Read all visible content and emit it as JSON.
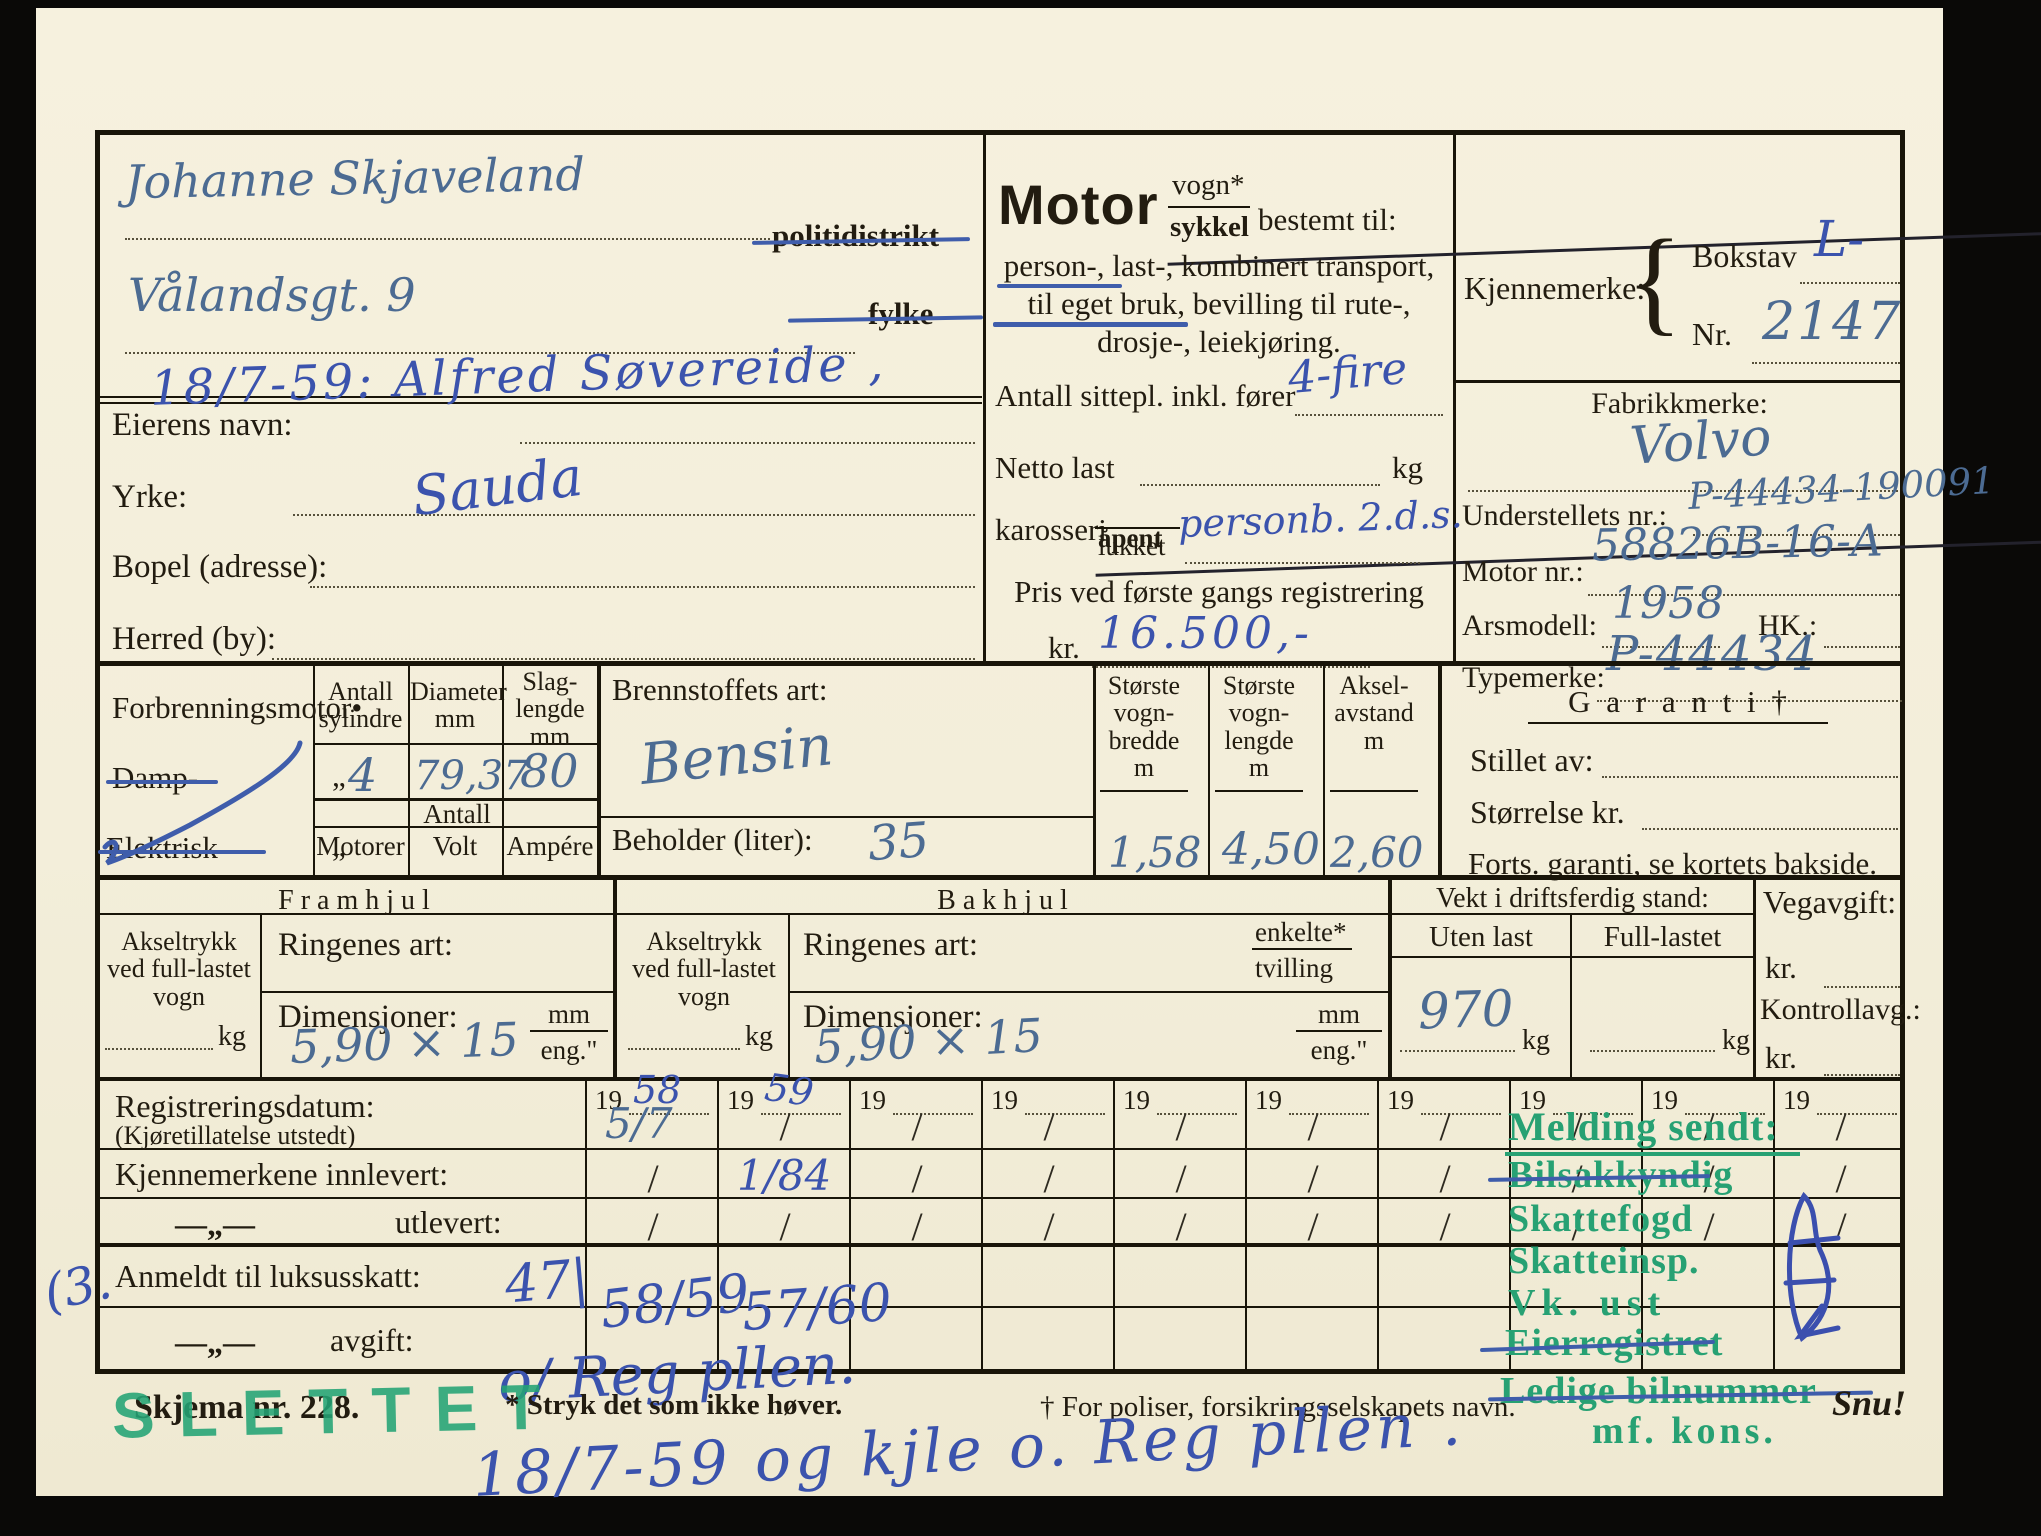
{
  "card": {
    "owner": {
      "name": "Johanne Skjaveland",
      "address": "Vålandsgt. 9",
      "politidistrikt": "politidistrikt",
      "fylke": "fylke",
      "transfer": "18/7-59:   Alfred Søvereide ,",
      "eierens": "Eierens navn:",
      "yrke": "Yrke:",
      "bopel": "Bopel (adresse):",
      "herred": "Herred (by):",
      "sted": "Sauda"
    },
    "motor": {
      "title": "Motor",
      "vogn": "vogn*",
      "sykkel": "sykkel",
      "bestemt": "bestemt til:",
      "l1": "person-, last-, kombinert transport,",
      "l2": "til eget bruk, bevilling til rute-,",
      "l3": "drosje-, leiekjøring.",
      "sittepl_label": "Antall sittepl. inkl. fører",
      "sittepl_value": "4-fire",
      "netto_label": "Netto last",
      "kg": "kg",
      "karosseri_label": "karosseri",
      "apent": "åpent",
      "lukket": "lukket",
      "karosseri_value": "personb. 2.d.s.",
      "pris_label": "Pris ved første gangs registrering",
      "kr": "kr.",
      "pris_value": "16.500,-"
    },
    "id": {
      "kjennemerke": "Kjennemerke:",
      "brace": "{",
      "bokstav": "Bokstav",
      "bokstav_v": "L-",
      "nr": "Nr.",
      "nr_v": "2147",
      "fabrikk": "Fabrikkmerke:",
      "fabrikk_v": "Volvo",
      "underst": "Understellets nr.:",
      "underst_v": "P-44434-190091",
      "motornr": "Motor nr.:",
      "motornr_v": "58826B-16-A",
      "arsmodell": "Arsmodell:",
      "arsmodell_v": "1958",
      "hk": "HK.:",
      "typemerke": "Typemerke:",
      "typemerke_v": "P-44434"
    },
    "engine": {
      "label": "Forbrenningsmotor•",
      "damp": "Damp-",
      "elektrisk": "Elektrisk",
      "ditto": "„",
      "c1": "Antall\nsylindre",
      "c2": "Diameter\nmm",
      "c3": "Slag-\nlengde\nmm",
      "v1": "4",
      "v2": "79,37",
      "v3": "80",
      "antall": "Antall",
      "motorer": "Motorer",
      "volt": "Volt",
      "ampere": "Ampére",
      "brennstoff": "Brennstoffets art:",
      "brennstoff_v": "Bensin",
      "beholder": "Beholder (liter):",
      "beholder_v": "35",
      "h1": "Største\nvogn-\nbredde\nm",
      "h2": "Største\nvogn-\nlengde\nm",
      "h3": "Aksel-\navstand\nm",
      "m1": "1,58",
      "m2": "4,50",
      "m3": "2,60",
      "garanti": "G a r a n t i †",
      "stillet": "Stillet av:",
      "storrelse": "Størrelse kr.",
      "forts": "Forts. garanti, se kortets bakside."
    },
    "wheels": {
      "fram": "F r a m h j u l",
      "bak": "B a k h j u l",
      "akseltrykk": "Akseltrykk\nved full-lastet\nvogn",
      "kg": "kg",
      "ringenes": "Ringenes art:",
      "dim": "Dimensjoner:",
      "fram_dim": "5,90 × 15",
      "bak_dim": "5,90 × 15",
      "mm": "mm",
      "eng": "eng.\"",
      "enkelte": "enkelte*",
      "tvilling": "tvilling"
    },
    "weight": {
      "title": "Vekt i driftsferdig stand:",
      "uten": "Uten last",
      "full": "Full-lastet",
      "uten_v": "970",
      "kg": "kg"
    },
    "veg": {
      "title": "Vegavgift:",
      "kr": "kr.",
      "kontroll": "Kontrollavg.:"
    },
    "grid": {
      "year_prefix": "19",
      "r1a": "Registreringsdatum:",
      "r1b": "(Kjøretillatelse utstedt)",
      "r2": "Kjennemerkene innlevert:",
      "ditto": "—„—",
      "r3": "utlevert:",
      "r4": "Anmeldt til luksusskatt:",
      "r5": "avgift:",
      "luksus_note": "47|",
      "luksus_58": "58/59",
      "luksus_57": "57/60",
      "avgift_note": "o/ Reg pllen.",
      "columns": [
        {
          "year": "58",
          "r1": "5/7",
          "r1_hw": true,
          "r2": "/",
          "r3": "/"
        },
        {
          "year": "59",
          "r1": "/",
          "r2": "1/84",
          "r2_hw": true,
          "r3": "/"
        },
        {
          "r1": "/",
          "r2": "/",
          "r3": "/"
        },
        {
          "r1": "/",
          "r2": "/",
          "r3": "/"
        },
        {
          "r1": "/",
          "r2": "/",
          "r3": "/"
        },
        {
          "r1": "/",
          "r2": "/",
          "r3": "/"
        },
        {
          "r1": "/",
          "r2": "/",
          "r3": "/"
        },
        {
          "r1": "/",
          "r2": "/",
          "r3": "/"
        },
        {
          "r1": "/",
          "r2": "/",
          "r3": "/"
        },
        {
          "r1": "/",
          "r2": "/",
          "r3": "/"
        }
      ]
    },
    "stamps": {
      "slettet": "SLETTET",
      "melding": "Melding sendt:",
      "bilsakkyndig": "Bilsakkyndig",
      "skattefogd": "Skattefogd",
      "skatteinsp": "Skatteinsp.",
      "vk": "Vk. ust",
      "eierregistret": "Eierregistret",
      "ledige": "Ledige bilnummer",
      "mf": "mf. kons."
    },
    "footer": {
      "skjema": "Skjema nr. 228.",
      "stryk": "* Stryk det som ikke høver.",
      "poliser": "† For poliser, forsikringsselskapets navn.",
      "snu": "Snu!",
      "margin_note": "(3.",
      "bottom_note": "18/7-59 og kjle o. Reg pllen ."
    }
  }
}
